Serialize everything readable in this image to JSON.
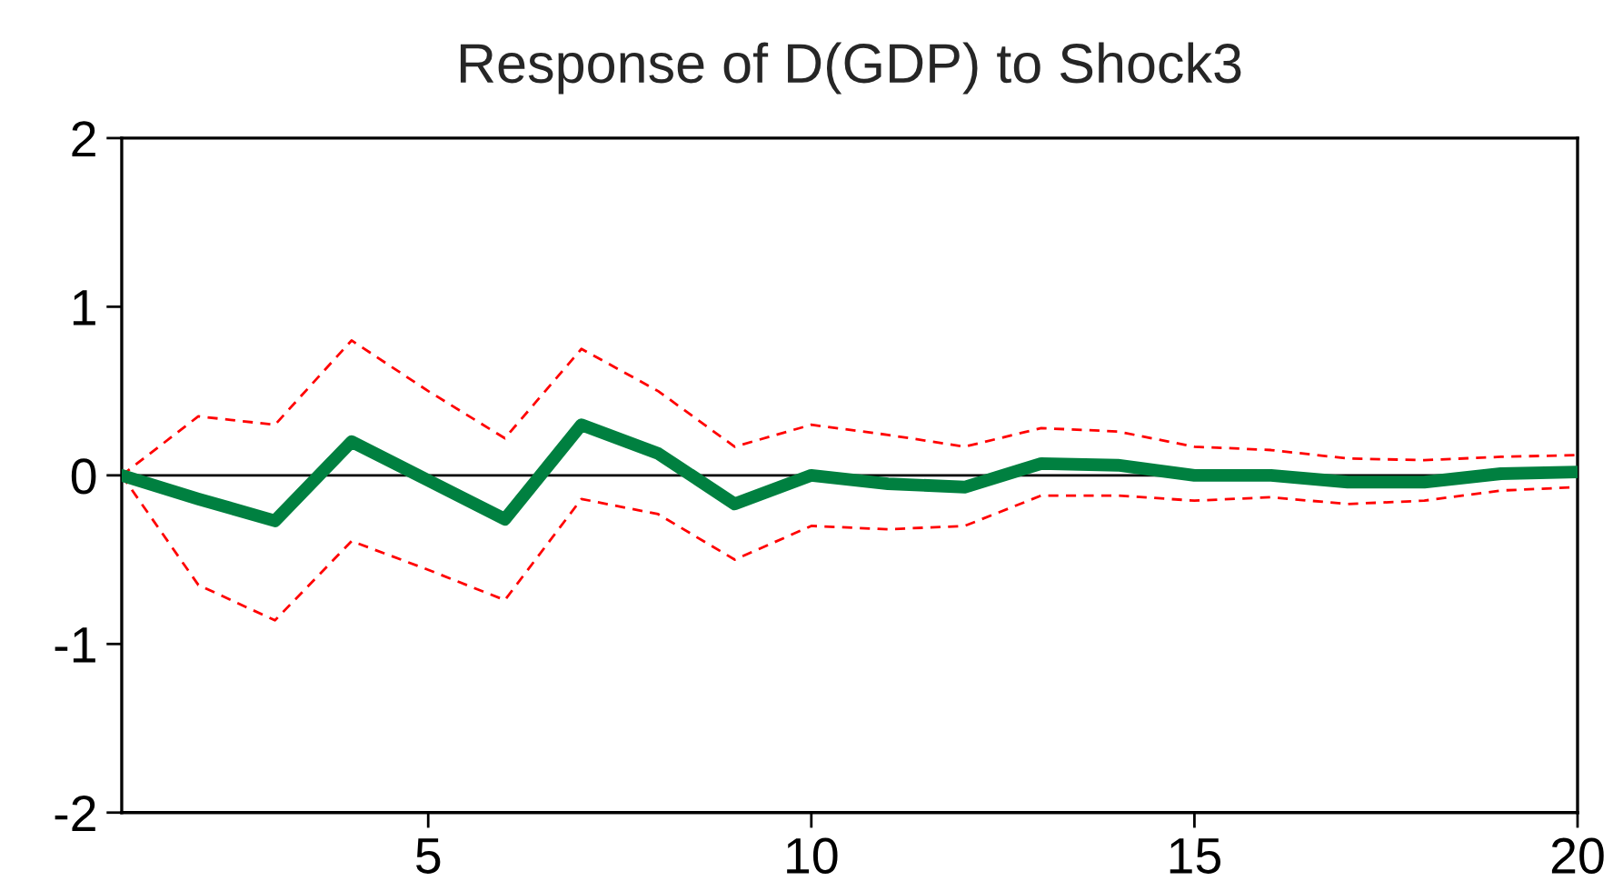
{
  "chart_data": {
    "type": "line",
    "title": "Response of D(GDP) to Shock3",
    "x": [
      1,
      2,
      3,
      4,
      5,
      6,
      7,
      8,
      9,
      10,
      11,
      12,
      13,
      14,
      15,
      16,
      17,
      18,
      19,
      20
    ],
    "series": [
      {
        "color": "#008040",
        "line_style": "solid",
        "values": [
          0,
          -0.14,
          -0.27,
          0.2,
          -0.03,
          -0.26,
          0.3,
          0.13,
          -0.17,
          0.0,
          -0.05,
          -0.07,
          0.07,
          0.06,
          0.0,
          0.0,
          -0.04,
          -0.04,
          0.01,
          0.02
        ]
      },
      {
        "color": "#ff0000",
        "line_style": "dashed",
        "values": [
          0,
          0.35,
          0.3,
          0.8,
          0.5,
          0.22,
          0.75,
          0.5,
          0.17,
          0.3,
          0.24,
          0.17,
          0.28,
          0.26,
          0.17,
          0.15,
          0.1,
          0.09,
          0.11,
          0.12
        ]
      },
      {
        "color": "#ff0000",
        "line_style": "dashed",
        "values": [
          0,
          -0.65,
          -0.86,
          -0.39,
          -0.56,
          -0.74,
          -0.14,
          -0.23,
          -0.5,
          -0.3,
          -0.32,
          -0.3,
          -0.12,
          -0.12,
          -0.15,
          -0.13,
          -0.17,
          -0.15,
          -0.09,
          -0.07
        ]
      }
    ],
    "xlim": [
      1,
      20
    ],
    "xticks": [
      5,
      10,
      15,
      20
    ],
    "ylim": [
      -2,
      2
    ],
    "yticks": [
      -2,
      -1,
      0,
      1,
      2
    ],
    "ref_lines": [
      {
        "axis": "y",
        "value": 0,
        "color": "#000000"
      }
    ],
    "grid": false
  }
}
